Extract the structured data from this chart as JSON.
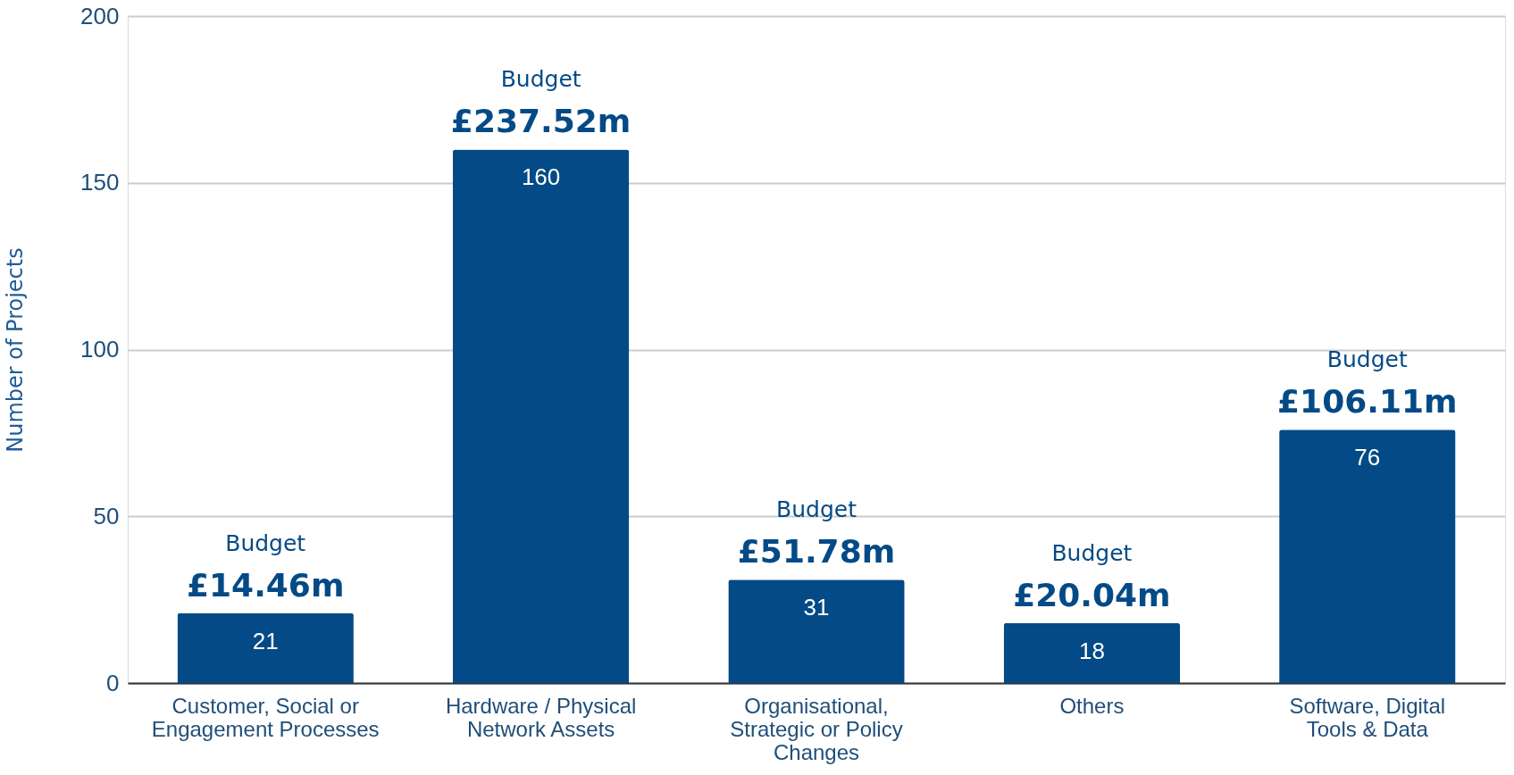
{
  "chart_data": {
    "type": "bar",
    "ylabel": "Number of Projects",
    "categories": [
      "Customer, Social or Engagement Processes",
      "Hardware / Physical Network Assets",
      "Organisational, Strategic or Policy Changes",
      "Others",
      "Software, Digital Tools & Data"
    ],
    "values": [
      21,
      160,
      31,
      18,
      76
    ],
    "color": "#034a86",
    "ylim": [
      0,
      200
    ],
    "yticks": [
      0,
      50,
      100,
      150,
      200
    ],
    "grid": "y",
    "data_labels": true,
    "annotations": [
      {
        "text": "Budget",
        "x": "Customer, Social or Engagement Processes",
        "y": 21
      },
      {
        "text": "£14.46m",
        "x": "Customer, Social or Engagement Processes",
        "y": 21
      },
      {
        "text": "Budget",
        "x": "Hardware / Physical Network Assets",
        "y": 160
      },
      {
        "text": "£237.52m",
        "x": "Hardware / Physical Network Assets",
        "y": 160
      },
      {
        "text": "Budget",
        "x": "Organisational, Strategic or Policy Changes",
        "y": 31
      },
      {
        "text": "£51.78m",
        "x": "Organisational, Strategic or Policy Changes",
        "y": 31
      },
      {
        "text": "Budget",
        "x": "Others",
        "y": 18
      },
      {
        "text": "£20.04m",
        "x": "Others",
        "y": 18
      },
      {
        "text": "Budget",
        "x": "Software, Digital Tools & Data",
        "y": 76
      },
      {
        "text": "£106.11m",
        "x": "Software, Digital Tools & Data",
        "y": 76
      }
    ]
  }
}
